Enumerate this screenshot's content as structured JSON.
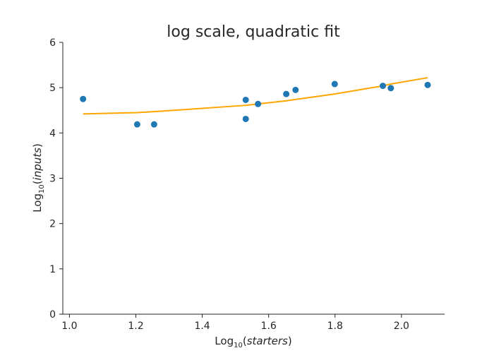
{
  "chart_data": {
    "type": "scatter",
    "title": "log scale, quadratic fit",
    "xlabel_prefix": "Log",
    "xlabel_subscript": "10",
    "xlabel_open": "(",
    "xlabel_var": "starters",
    "xlabel_close": ")",
    "ylabel_prefix": "Log",
    "ylabel_subscript": "10",
    "ylabel_open": "(",
    "ylabel_var": "inputs",
    "ylabel_close": ")",
    "xlim": [
      0.98,
      2.13
    ],
    "ylim": [
      0,
      6
    ],
    "xticks": [
      1.0,
      1.2,
      1.4,
      1.6,
      1.8,
      2.0
    ],
    "xtick_labels": [
      "1.0",
      "1.2",
      "1.4",
      "1.6",
      "1.8",
      "2.0"
    ],
    "yticks": [
      0,
      1,
      2,
      3,
      4,
      5,
      6
    ],
    "ytick_labels": [
      "0",
      "1",
      "2",
      "3",
      "4",
      "5",
      "6"
    ],
    "grid": false,
    "series": [
      {
        "kind": "scatter",
        "color": "#1f77b4",
        "x": [
          1.041,
          1.204,
          1.255,
          1.531,
          1.531,
          1.568,
          1.653,
          1.681,
          1.799,
          1.944,
          1.968,
          2.079
        ],
        "y": [
          4.75,
          4.19,
          4.19,
          4.73,
          4.31,
          4.64,
          4.86,
          4.95,
          5.08,
          5.04,
          4.99,
          5.06
        ]
      },
      {
        "kind": "line",
        "color": "#ffa500",
        "x": [
          1.041,
          1.204,
          1.255,
          1.531,
          1.568,
          1.653,
          1.681,
          1.799,
          1.944,
          1.968,
          2.079
        ],
        "y": [
          4.42,
          4.45,
          4.47,
          4.61,
          4.64,
          4.71,
          4.74,
          4.86,
          5.04,
          5.08,
          5.22
        ]
      }
    ]
  }
}
